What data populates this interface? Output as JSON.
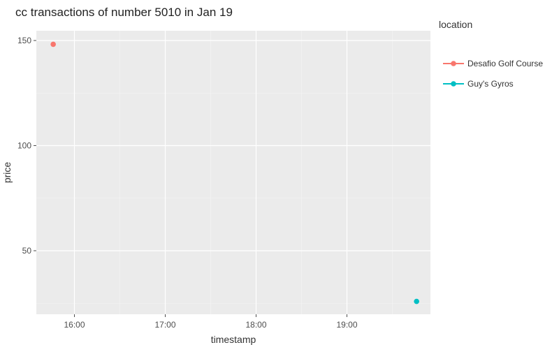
{
  "chart_data": {
    "type": "scatter",
    "title": "cc transactions of number 5010 in Jan 19",
    "xlabel": "timestamp",
    "ylabel": "price",
    "x_ticks": [
      "16:00",
      "17:00",
      "18:00",
      "19:00"
    ],
    "y_ticks": [
      "50",
      "100",
      "150"
    ],
    "legend_title": "location",
    "legend_position": "right",
    "grid": true,
    "series": [
      {
        "name": "Desafio Golf Course",
        "color": "#f8766d",
        "points": [
          {
            "x": "15:46",
            "y": 148.2
          }
        ]
      },
      {
        "name": "Guy's Gyros",
        "color": "#00bfc4",
        "points": [
          {
            "x": "19:46",
            "y": 25.9
          }
        ]
      }
    ]
  }
}
